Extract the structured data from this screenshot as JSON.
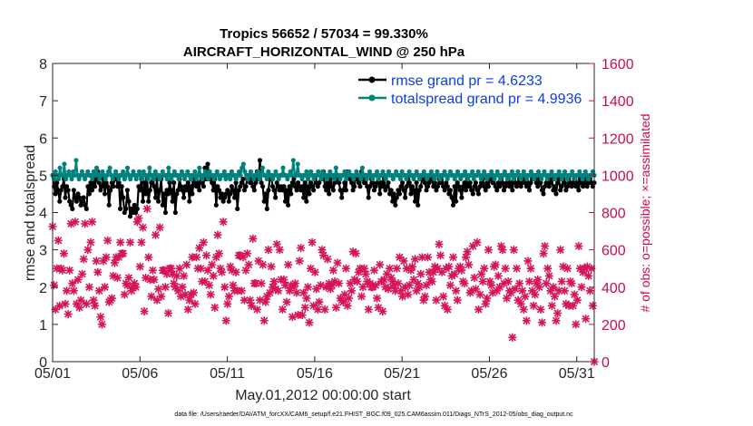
{
  "chart_data": {
    "type": "line",
    "title_line1": "Tropics 56652 / 57034 = 99.330%",
    "title_line2": "AIRCRAFT_HORIZONTAL_WIND @ 250 hPa",
    "xlabel": "May.01,2012 00:00:00 start",
    "ylabel": "rmse and totalspread",
    "ylabel_right": "# of obs: o=possible; ×=assimilated",
    "ylim": [
      0,
      8
    ],
    "ylim_right": [
      0,
      1600
    ],
    "xlim": [
      0,
      31
    ],
    "x_ticks": [
      0,
      5,
      10,
      15,
      20,
      25,
      30
    ],
    "x_tick_labels": [
      "05/01",
      "05/06",
      "05/11",
      "05/16",
      "05/21",
      "05/26",
      "05/31"
    ],
    "y_ticks": [
      "0",
      "1",
      "2",
      "3",
      "4",
      "5",
      "6",
      "7",
      "8"
    ],
    "y_ticks_right": [
      "0",
      "200",
      "400",
      "600",
      "800",
      "1000",
      "1200",
      "1400",
      "1600"
    ],
    "legend_position": "top-right",
    "footer": "data file: /Users/raeder/DAI/ATM_forcXX/CAM6_setup/f.e21.FHIST_BGC.f09_025.CAM6assim.011/Diags_NTrS_2012-05/obs_diag_output.nc",
    "colors": {
      "rmse": "#000000",
      "spread": "#00827f",
      "obs": "#d6145a",
      "legend_text": "#0a3fe6",
      "axis": "#262626"
    },
    "series": [
      {
        "name": "rmse",
        "legend": "rmse grand pr = 4.6233",
        "values": [
          5.0,
          4.7,
          4.5,
          4.8,
          4.6,
          4.3,
          4.6,
          4.7,
          4.9,
          4.4,
          4.7,
          4.6,
          4.3,
          4.2,
          4.1,
          4.6,
          4.4,
          4.3,
          4.5,
          4.4,
          4.2,
          4.3,
          4.4,
          4.2,
          4.1,
          4.7,
          4.5,
          4.8,
          4.6,
          4.9,
          4.7,
          4.9,
          5.1,
          4.8,
          4.6,
          4.7,
          4.9,
          4.5,
          4.8,
          4.7,
          4.2,
          4.6,
          4.8,
          4.7,
          4.9,
          5.0,
          4.7,
          4.8,
          4.1,
          4.7,
          4.4,
          4.0,
          4.1,
          4.6,
          4.3,
          3.9,
          4.1,
          4.0,
          4.2,
          4.0,
          4.1,
          4.7,
          4.6,
          4.9,
          4.3,
          4.8,
          4.5,
          4.9,
          4.3,
          4.6,
          4.8,
          5.0,
          4.7,
          4.4,
          4.9,
          4.3,
          4.6,
          4.9,
          4.2,
          4.5,
          4.0,
          4.6,
          4.5,
          4.8,
          4.6,
          4.3,
          4.8,
          4.0,
          4.5,
          4.6,
          4.9,
          4.7,
          4.6,
          4.4,
          4.7,
          4.6,
          4.8,
          4.3,
          4.7,
          4.5,
          4.8,
          4.9,
          4.7,
          4.8,
          4.6,
          5.0,
          4.8,
          4.7,
          5.2,
          4.9,
          5.3,
          4.9,
          5.0,
          4.8,
          4.6,
          4.9,
          4.2,
          4.7,
          4.6,
          4.4,
          4.5,
          4.3,
          4.4,
          4.5,
          4.6,
          4.3,
          4.5,
          4.7,
          4.6,
          4.4,
          4.8,
          4.1,
          4.6,
          4.7,
          4.8,
          4.9,
          4.6,
          4.7,
          4.9,
          5.0,
          4.8,
          4.9,
          4.7,
          4.6,
          4.8,
          5.1,
          4.9,
          5.4,
          4.8,
          4.7,
          4.3,
          4.5,
          4.1,
          4.6,
          4.9,
          5.0,
          4.7,
          4.6,
          4.4,
          4.8,
          4.7,
          4.6,
          4.7,
          4.6,
          4.7,
          4.3,
          4.6,
          4.2,
          4.7,
          4.5,
          4.8,
          4.9,
          4.7,
          4.6,
          4.8,
          4.7,
          4.6,
          4.7,
          4.4,
          4.8,
          4.3,
          4.7,
          4.5,
          4.8,
          4.7,
          4.6,
          4.9,
          4.8,
          4.7,
          4.8,
          5.0,
          4.9,
          5.1,
          4.7,
          4.6,
          4.8,
          4.5,
          4.9,
          4.7,
          4.6,
          4.8,
          4.9,
          5.0,
          4.8,
          4.6,
          4.4,
          4.6,
          4.8,
          4.6,
          5.1,
          5.0,
          4.9,
          4.8,
          4.6,
          4.7,
          5.0,
          4.9,
          4.8,
          4.7,
          5.1,
          4.9,
          4.8,
          5.0,
          4.7,
          4.4,
          4.7,
          4.9,
          4.8,
          4.6,
          4.7,
          4.8,
          4.9,
          4.5,
          4.8,
          4.7,
          4.9,
          4.6,
          4.7,
          4.8,
          4.5,
          4.6,
          4.3,
          4.5,
          4.2,
          4.4,
          4.6,
          4.5,
          4.7,
          4.8,
          4.6,
          4.4,
          4.7,
          4.9,
          4.8,
          4.5,
          4.7,
          4.6,
          4.3,
          4.8,
          4.2,
          4.6,
          4.7,
          4.9,
          5.0,
          4.8,
          4.6,
          4.7,
          4.8,
          5.0,
          4.9,
          4.7,
          4.8,
          4.6,
          4.7,
          4.9,
          4.8,
          5.0,
          4.7,
          4.6,
          4.8,
          4.7,
          4.5,
          4.6,
          4.4,
          4.2,
          4.7,
          4.3,
          4.8,
          4.7,
          4.6,
          4.4,
          4.7,
          4.8,
          4.6,
          4.9,
          4.7,
          4.8,
          4.6,
          4.5,
          4.7,
          4.8,
          4.6,
          4.5,
          4.7,
          4.8,
          4.9,
          4.7,
          4.6,
          4.8,
          4.7,
          4.9,
          5.0,
          4.8,
          4.9,
          4.7,
          4.6,
          4.8,
          4.7,
          4.9,
          4.8,
          4.6,
          4.7,
          4.8,
          4.9,
          4.7,
          4.8,
          4.6,
          4.9,
          4.8,
          4.7,
          4.8,
          4.9,
          4.7,
          4.8,
          4.9,
          4.8,
          4.7,
          4.8,
          4.6,
          4.8,
          4.9,
          5.0,
          4.9,
          4.8,
          4.7,
          4.9,
          4.8,
          4.6,
          4.5,
          4.7,
          4.8,
          4.9,
          4.7,
          4.8,
          4.9,
          4.6,
          4.7,
          4.5,
          4.8,
          4.9,
          4.6,
          4.7,
          4.9,
          4.8,
          4.6,
          4.7,
          4.9,
          4.8,
          4.7,
          4.8,
          4.9,
          4.7,
          4.8,
          4.6,
          4.9,
          4.8,
          4.7,
          4.8,
          4.9,
          4.7,
          4.8,
          4.9,
          4.8,
          4.7,
          4.8
        ]
      },
      {
        "name": "totalspread",
        "legend": "totalspread grand pr = 4.9936",
        "values": [
          5.0,
          4.9,
          5.1,
          5.0,
          4.9,
          5.2,
          5.0,
          5.0,
          5.3,
          4.9,
          5.0,
          5.1,
          5.0,
          4.9,
          5.1,
          5.0,
          5.4,
          5.0,
          4.9,
          5.0,
          5.1,
          5.0,
          4.9,
          5.0,
          5.1,
          5.0,
          5.0,
          4.9,
          5.1,
          5.0,
          5.2,
          5.0,
          4.9,
          5.0,
          5.1,
          5.0,
          4.9,
          5.0,
          5.1,
          5.2,
          5.0,
          4.9,
          5.0,
          5.1,
          5.0,
          4.9,
          5.0,
          5.0,
          5.1,
          4.9,
          5.0,
          5.2,
          5.0,
          4.9,
          5.0,
          5.1,
          5.0,
          4.9,
          5.0,
          5.1,
          5.0,
          4.9,
          5.1,
          5.0,
          5.0,
          4.9,
          5.2,
          5.0,
          5.0,
          4.9,
          5.1,
          5.0,
          5.0,
          4.9,
          5.0,
          5.1,
          5.0,
          5.0,
          4.9,
          5.2,
          5.0,
          4.9,
          5.0,
          5.1,
          5.0,
          5.0,
          4.9,
          5.0,
          5.1,
          5.0,
          4.9,
          5.0,
          5.1,
          5.0,
          4.9,
          5.0,
          5.0,
          5.1,
          4.9,
          5.0,
          5.2,
          5.0,
          4.9,
          5.0,
          5.1,
          5.0,
          4.9,
          5.1,
          5.0,
          5.0,
          4.9,
          5.0,
          5.1,
          5.0,
          4.9,
          5.0,
          5.0,
          5.1,
          4.9,
          5.0,
          5.0,
          4.9,
          5.1,
          5.0,
          5.0,
          4.9,
          5.0,
          5.1,
          5.0,
          5.2,
          5.3,
          5.1,
          5.0,
          4.9,
          5.0,
          5.1,
          5.0,
          4.9,
          5.0,
          5.0,
          5.1,
          4.9,
          5.0,
          5.2,
          5.0,
          5.0,
          4.9,
          5.1,
          5.0,
          5.0,
          4.9,
          5.0,
          5.1,
          5.0,
          4.9,
          5.0,
          5.0,
          5.2,
          5.0,
          5.0,
          4.9,
          5.0,
          5.1,
          5.0,
          5.4,
          5.0,
          5.0,
          5.3,
          5.0,
          5.0,
          4.9,
          5.0,
          5.0,
          5.1,
          4.9,
          5.0,
          5.1,
          5.0,
          4.9,
          5.0,
          5.0,
          5.1,
          5.0,
          4.9,
          5.1,
          5.0,
          5.0,
          4.9,
          5.0,
          5.1,
          5.0,
          5.0,
          4.9,
          5.2,
          5.0,
          5.0,
          4.9,
          5.0,
          5.0,
          5.1,
          4.9,
          5.0,
          5.1,
          5.0,
          5.0,
          4.9,
          5.0,
          5.1,
          5.0,
          5.0,
          4.9,
          5.2,
          5.0,
          5.0,
          4.9,
          5.0,
          5.1,
          5.0,
          4.9,
          5.0,
          5.0,
          5.1,
          4.9,
          5.0,
          5.0,
          5.1,
          5.0,
          4.9,
          5.0,
          5.1,
          5.0,
          5.0,
          4.9,
          5.0,
          5.1,
          5.0,
          5.0,
          4.9,
          5.1,
          5.0,
          5.0,
          4.9,
          5.0,
          5.1,
          5.0,
          5.0,
          4.9,
          5.0,
          5.1,
          5.0,
          4.9,
          5.0,
          5.0,
          5.1,
          5.0,
          4.9,
          5.0,
          5.0,
          5.1,
          5.0,
          4.9,
          5.0,
          5.1,
          5.0,
          4.9,
          5.0,
          5.0,
          5.1,
          5.0,
          4.9,
          5.0,
          5.1,
          5.0,
          5.0,
          4.9,
          5.0,
          5.1,
          5.0,
          4.9,
          5.0,
          5.0,
          5.1,
          5.0,
          4.9,
          5.0,
          5.0,
          5.1,
          4.9,
          5.0,
          5.0,
          5.1,
          5.0,
          4.9,
          5.0,
          5.1,
          5.0,
          4.9,
          5.0,
          5.0,
          5.1,
          5.0,
          4.9,
          5.0,
          5.1,
          5.0,
          4.9,
          5.0,
          5.0,
          5.1,
          5.0,
          4.9,
          5.0,
          5.0,
          5.1,
          4.9,
          5.0,
          5.0,
          5.1,
          5.0,
          4.9,
          5.0,
          5.1,
          5.0,
          4.9,
          5.0,
          5.0,
          5.1,
          5.0,
          4.9,
          5.0,
          5.0,
          5.1,
          5.0,
          4.9,
          5.0,
          5.1,
          5.0,
          4.9,
          5.0,
          5.0,
          5.1,
          5.0,
          4.9,
          5.0,
          5.0,
          5.1,
          5.0,
          4.9,
          5.0,
          5.1,
          5.0,
          4.9,
          5.0,
          5.0,
          5.1,
          5.0,
          4.9,
          5.0,
          5.0,
          5.1,
          5.0,
          4.9,
          5.0,
          5.1,
          5.0,
          4.9,
          5.0,
          5.0,
          5.1,
          5.0
        ]
      },
      {
        "name": "obs_assimilated",
        "axis": "right",
        "values": [
          725,
          410,
          280,
          500,
          650,
          300,
          500,
          490,
          580,
          310,
          380,
          255,
          490,
          740,
          420,
          380,
          750,
          310,
          440,
          290,
          330,
          470,
          550,
          740,
          310,
          600,
          400,
          640,
          750,
          330,
          300,
          540,
          480,
          380,
          240,
          200,
          540,
          400,
          560,
          650,
          320,
          330,
          340,
          460,
          530,
          560,
          450,
          560,
          640,
          580,
          580,
          360,
          420,
          410,
          450,
          640,
          380,
          400,
          420,
          400,
          750,
          770,
          510,
          640,
          720,
          270,
          450,
          820,
          560,
          440,
          350,
          490,
          440,
          680,
          330,
          390,
          720,
          350,
          490,
          490,
          400,
          470,
          260,
          500,
          500,
          470,
          420,
          400,
          460,
          380,
          500,
          350,
          400,
          460,
          360,
          520,
          280,
          330,
          360,
          560,
          370,
          310,
          560,
          500,
          610,
          500,
          430,
          640,
          430,
          570,
          490,
          410,
          360,
          520,
          460,
          290,
          560,
          680,
          580,
          500,
          480,
          750,
          400,
          220,
          310,
          350,
          510,
          490,
          410,
          380,
          480,
          380,
          570,
          570,
          380,
          560,
          330,
          490,
          580,
          520,
          330,
          300,
          660,
          420,
          420,
          280,
          540,
          330,
          420,
          520,
          220,
          320,
          350,
          600,
          370,
          510,
          400,
          430,
          390,
          630,
          380,
          600,
          440,
          280,
          440,
          410,
          320,
          520,
          380,
          410,
          240,
          400,
          420,
          370,
          250,
          540,
          610,
          250,
          370,
          290,
          340,
          400,
          210,
          500,
          640,
          300,
          480,
          390,
          280,
          320,
          410,
          600,
          570,
          280,
          400,
          550,
          420,
          390,
          410,
          490,
          430,
          290,
          530,
          420,
          340,
          330,
          320,
          360,
          500,
          300,
          340,
          420,
          380,
          590,
          440,
          580,
          430,
          480,
          500,
          350,
          400,
          500,
          470,
          430,
          280,
          420,
          400,
          400,
          490,
          410,
          340,
          290,
          520,
          430,
          270,
          440,
          400,
          470,
          390,
          500,
          450,
          430,
          410,
          380,
          500,
          420,
          560,
          380,
          350,
          540,
          400,
          500,
          360,
          410,
          490,
          510,
          440,
          550,
          380,
          420,
          400,
          470,
          560,
          330,
          350,
          410,
          560,
          480,
          440,
          430,
          480,
          510,
          330,
          500,
          630,
          570,
          480,
          350,
          300,
          500,
          280,
          510,
          410,
          460,
          560,
          470,
          380,
          330,
          500,
          510,
          490,
          430,
          420,
          560,
          590,
          520,
          370,
          380,
          620,
          450,
          390,
          640,
          280,
          360,
          470,
          430,
          500,
          310,
          340,
          600,
          430,
          410,
          370,
          510,
          520,
          380,
          460,
          400,
          620,
          600,
          420,
          500,
          340,
          430,
          380,
          370,
          130,
          600,
          390,
          500,
          330,
          420,
          310,
          380,
          280,
          350,
          220,
          540,
          430,
          500,
          380,
          300,
          360,
          420,
          440,
          400,
          280,
          210,
          580,
          620,
          420,
          500,
          460,
          380,
          300,
          400,
          350,
          220,
          260,
          380,
          600,
          430,
          510,
          380,
          310,
          500,
          300,
          430,
          420,
          300,
          360,
          200,
          330,
          620,
          500,
          400,
          480,
          500,
          230,
          510,
          460,
          380,
          500,
          300,
          0
        ]
      }
    ]
  }
}
